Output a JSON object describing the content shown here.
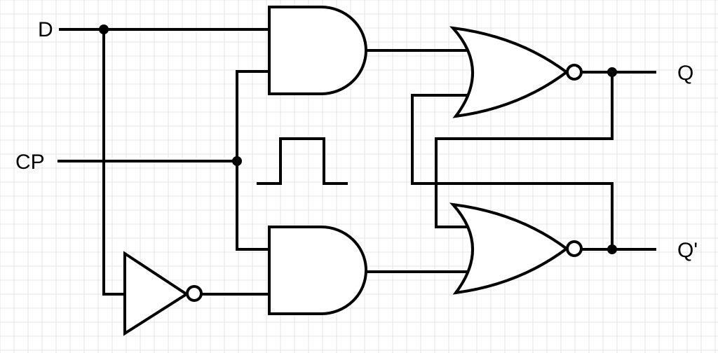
{
  "diagram": {
    "labels": {
      "d": "D",
      "cp": "CP",
      "q": "Q",
      "q_bar": "Q'"
    },
    "colors": {
      "line": "#000000",
      "background": "#ffffff",
      "grid": "#e6e6e6"
    },
    "grid_visible": true
  }
}
